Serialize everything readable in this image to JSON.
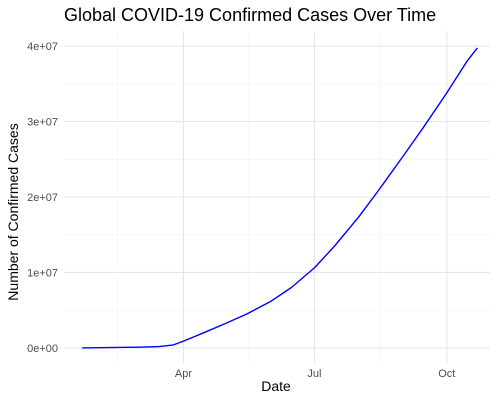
{
  "chart_data": {
    "type": "line",
    "title": "Global COVID-19 Confirmed Cases Over Time",
    "xlabel": "Date",
    "ylabel": "Number of Confirmed Cases",
    "x_tick_labels": [
      "Apr",
      "Jul",
      "Oct"
    ],
    "x_ticks": [
      "2020-04-01",
      "2020-07-01",
      "2020-10-01"
    ],
    "x_minor_ticks": [
      "2020-02-15",
      "2020-05-16",
      "2020-08-16"
    ],
    "xlim": [
      "2020-01-09",
      "2020-10-31"
    ],
    "y_tick_labels": [
      "0e+00",
      "1e+07",
      "2e+07",
      "3e+07",
      "4e+07"
    ],
    "y_ticks": [
      0,
      10000000,
      20000000,
      30000000,
      40000000
    ],
    "y_minor_ticks": [
      5000000,
      15000000,
      25000000,
      35000000
    ],
    "ylim": [
      -2000000,
      42000000
    ],
    "grid": true,
    "legend": "none",
    "color": "#0000ff",
    "x": [
      "2020-01-22",
      "2020-02-15",
      "2020-03-01",
      "2020-03-15",
      "2020-03-25",
      "2020-04-01",
      "2020-04-15",
      "2020-05-01",
      "2020-05-15",
      "2020-06-01",
      "2020-06-15",
      "2020-07-01",
      "2020-07-15",
      "2020-08-01",
      "2020-08-15",
      "2020-09-01",
      "2020-09-15",
      "2020-10-01",
      "2020-10-15",
      "2020-10-22"
    ],
    "y": [
      0,
      70000,
      90000,
      180000,
      400000,
      900000,
      2000000,
      3300000,
      4500000,
      6200000,
      8000000,
      10600000,
      13500000,
      17400000,
      21000000,
      25500000,
      29300000,
      33800000,
      38000000,
      39700000
    ]
  }
}
